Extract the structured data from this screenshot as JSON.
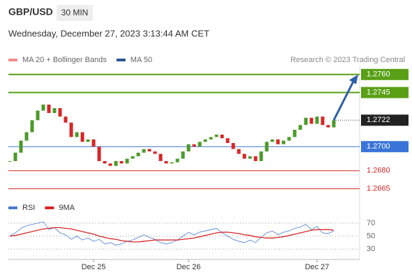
{
  "chart_data": {
    "type": "candlestick",
    "title": "GBP/USD",
    "timeframe": "30 MIN",
    "timestamp": "Wednesday, December 27, 2023 3:13:44 AM CET",
    "source": "Research © 2023 Trading Central",
    "legend": [
      {
        "name": "MA 20 + Bollinger Bands",
        "color": "#f08c8c"
      },
      {
        "name": "MA 50",
        "color": "#2f5597"
      }
    ],
    "up_color": "#4c9a2a",
    "down_color": "#d62728",
    "categories": [
      null,
      null,
      null,
      null,
      null,
      null,
      null,
      null,
      null,
      null,
      null,
      null,
      null,
      null,
      null,
      "Dec 25",
      null,
      null,
      null,
      null,
      null,
      null,
      null,
      null,
      null,
      null,
      null,
      null,
      null,
      null,
      null,
      null,
      "Dec 26",
      null,
      null,
      null,
      null,
      null,
      null,
      null,
      null,
      null,
      null,
      null,
      null,
      null,
      null,
      null,
      null,
      null,
      null,
      null,
      null,
      null,
      null,
      "Dec 27",
      null,
      null,
      null
    ],
    "close": [
      1.2688,
      1.2695,
      1.2705,
      1.2712,
      1.2722,
      1.273,
      1.2735,
      1.2728,
      1.2732,
      1.2725,
      1.272,
      1.2708,
      1.2712,
      1.2704,
      1.2706,
      1.27,
      1.2688,
      1.2686,
      1.2684,
      1.2688,
      1.2686,
      1.269,
      1.2692,
      1.2695,
      1.2698,
      1.2696,
      1.2694,
      1.2688,
      1.2686,
      1.2687,
      1.269,
      1.2696,
      1.2702,
      1.27,
      1.2704,
      1.2706,
      1.2708,
      1.271,
      1.2707,
      1.2703,
      1.2698,
      1.2694,
      1.269,
      1.2692,
      1.2688,
      1.2696,
      1.2704,
      1.2706,
      1.2702,
      1.2705,
      1.2708,
      1.2714,
      1.2718,
      1.2724,
      1.2719,
      1.2725,
      1.2718,
      1.2716,
      1.2722
    ],
    "ylim": [
      1.2652,
      1.2768
    ],
    "levels": [
      {
        "value": 1.276,
        "label": "1.2760",
        "color": "#5aa017",
        "style": "box"
      },
      {
        "value": 1.2745,
        "label": "1.2745",
        "color": "#5aa017",
        "style": "box"
      },
      {
        "value": 1.2722,
        "label": "1.2722",
        "color": "#222222",
        "style": "current"
      },
      {
        "value": 1.27,
        "label": "1.2700",
        "color": "#3a74d8",
        "style": "box"
      },
      {
        "value": 1.268,
        "label": "1.2680",
        "color": "#d62728",
        "style": "text"
      },
      {
        "value": 1.2665,
        "label": "1.2665",
        "color": "#d62728",
        "style": "text"
      }
    ],
    "rsi": {
      "ylim": [
        14,
        86
      ],
      "yticks": [
        70,
        50,
        30
      ],
      "series": [
        {
          "name": "RSI",
          "color": "#4a7bd0",
          "values": [
            50,
            55,
            62,
            66,
            68,
            70,
            72,
            60,
            63,
            55,
            52,
            45,
            50,
            44,
            47,
            42,
            45,
            38,
            40,
            36,
            38,
            42,
            44,
            48,
            52,
            48,
            45,
            40,
            38,
            40,
            44,
            50,
            56,
            52,
            56,
            58,
            60,
            62,
            55,
            50,
            45,
            42,
            40,
            44,
            40,
            48,
            55,
            58,
            52,
            56,
            58,
            62,
            64,
            68,
            60,
            65,
            55,
            54,
            58
          ]
        },
        {
          "name": "9MA",
          "color": "#d62728",
          "values": [
            50,
            51,
            53,
            55,
            57,
            59,
            61,
            62,
            63,
            63,
            62,
            61,
            59,
            57,
            55,
            53,
            50,
            48,
            46,
            45,
            43,
            42,
            41,
            41,
            42,
            43,
            44,
            44,
            44,
            44,
            44,
            45,
            46,
            47,
            49,
            51,
            53,
            55,
            56,
            56,
            55,
            54,
            52,
            51,
            49,
            48,
            47,
            47,
            48,
            49,
            51,
            53,
            55,
            57,
            59,
            60,
            60,
            60,
            59
          ]
        }
      ]
    }
  }
}
